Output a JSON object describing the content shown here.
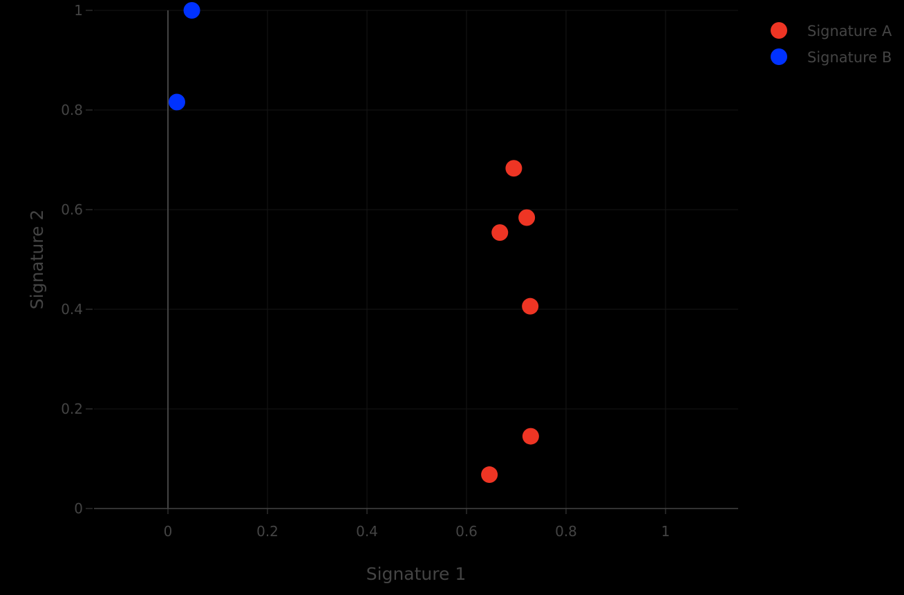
{
  "chart_data": {
    "type": "scatter",
    "title": "",
    "xlabel": "Signature 1",
    "ylabel": "Signature 2",
    "xlim": [
      -0.15,
      1.15
    ],
    "ylim": [
      0,
      1
    ],
    "x_ticks": [
      0,
      0.2,
      0.4,
      0.6,
      0.8,
      1
    ],
    "x_tick_labels": [
      "0",
      "0.2",
      "0.4",
      "0.6",
      "0.8",
      "1"
    ],
    "y_ticks": [
      0,
      0.2,
      0.4,
      0.6,
      0.8,
      1
    ],
    "y_tick_labels": [
      "0",
      "0.2",
      "0.4",
      "0.6",
      "0.8",
      "1"
    ],
    "grid": true,
    "legend_position": "top-right",
    "series": [
      {
        "name": "Signature A",
        "color": "#ee3524",
        "points": [
          {
            "x": 0.695,
            "y": 0.683
          },
          {
            "x": 0.721,
            "y": 0.584
          },
          {
            "x": 0.667,
            "y": 0.554
          },
          {
            "x": 0.728,
            "y": 0.406
          },
          {
            "x": 0.729,
            "y": 0.145
          },
          {
            "x": 0.646,
            "y": 0.068
          }
        ]
      },
      {
        "name": "Signature B",
        "color": "#0032ff",
        "points": [
          {
            "x": 0.048,
            "y": 1.0
          },
          {
            "x": 0.018,
            "y": 0.816
          }
        ]
      }
    ]
  }
}
